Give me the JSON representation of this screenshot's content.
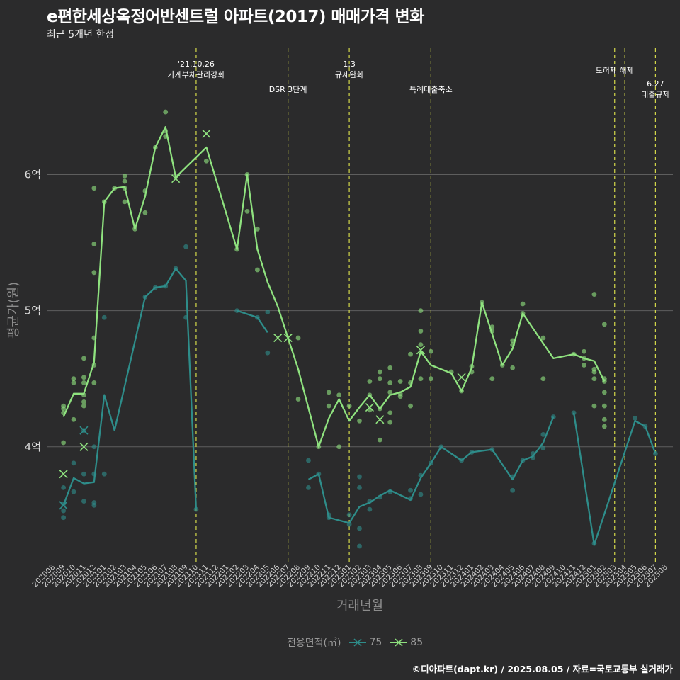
{
  "title": "e편한세상옥정어반센트럴 아파트(2017) 매매가격 변화",
  "subtitle": "최근 5개년 한정",
  "caption": "©디아파트(dapt.kr) / 2025.08.05 / 자료=국토교통부 실거래가",
  "colors": {
    "background": "#2b2b2c",
    "grid": "#5e5e5e",
    "series_75": "#2e8d8a",
    "series_85": "#8fe27f",
    "event_line": "#d4d94a"
  },
  "chart_data": {
    "type": "line",
    "title": "e편한세상옥정어반센트럴 아파트(2017) 매매가격 변화",
    "subtitle": "최근 5개년 한정",
    "xlabel": "거래년월",
    "ylabel": "평균가(원)",
    "legend_title": "전용면적(㎡)",
    "legend_position": "bottom",
    "grid": true,
    "ylim": [
      3.14,
      6.96
    ],
    "yticks": [
      4,
      5,
      6
    ],
    "ytick_labels": [
      "4억",
      "5억",
      "6억"
    ],
    "categories": [
      "202008",
      "202009",
      "202010",
      "202011",
      "202012",
      "202101",
      "202102",
      "202103",
      "202104",
      "202105",
      "202106",
      "202107",
      "202108",
      "202109",
      "202110",
      "202111",
      "202112",
      "202201",
      "202202",
      "202203",
      "202204",
      "202205",
      "202206",
      "202207",
      "202208",
      "202209",
      "202210",
      "202211",
      "202212",
      "202301",
      "202302",
      "202303",
      "202304",
      "202305",
      "202306",
      "202307",
      "202308",
      "202309",
      "202310",
      "202311",
      "202312",
      "202401",
      "202402",
      "202403",
      "202404",
      "202405",
      "202406",
      "202407",
      "202408",
      "202409",
      "202410",
      "202411",
      "202412",
      "202501",
      "202502",
      "202503",
      "202504",
      "202505",
      "202506",
      "202507",
      "202508"
    ],
    "series": [
      {
        "name": "75",
        "color": "#2e8d8a",
        "lines": [
          [
            [
              1,
              3.57
            ],
            [
              2,
              3.77
            ],
            [
              3,
              3.73
            ],
            [
              4,
              3.74
            ],
            [
              5,
              4.38
            ],
            [
              6,
              4.12
            ],
            [
              9,
              5.1
            ],
            [
              10,
              5.17
            ],
            [
              11,
              5.18
            ],
            [
              12,
              5.31
            ],
            [
              13,
              5.22
            ],
            [
              14,
              3.54
            ]
          ],
          [
            [
              18,
              5.0
            ],
            [
              20,
              4.95
            ],
            [
              21,
              4.84
            ]
          ],
          [
            [
              25,
              3.76
            ],
            [
              26,
              3.8
            ],
            [
              27,
              3.48
            ],
            [
              29,
              3.44
            ],
            [
              30,
              3.56
            ],
            [
              31,
              3.59
            ],
            [
              32,
              3.64
            ],
            [
              33,
              3.68
            ],
            [
              35,
              3.61
            ],
            [
              36,
              3.77
            ],
            [
              37,
              3.88
            ],
            [
              38,
              4.0
            ],
            [
              40,
              3.9
            ],
            [
              41,
              3.96
            ],
            [
              43,
              3.98
            ],
            [
              45,
              3.76
            ],
            [
              46,
              3.9
            ],
            [
              47,
              3.93
            ],
            [
              48,
              4.03
            ],
            [
              49,
              4.22
            ]
          ],
          [
            [
              51,
              4.25
            ],
            [
              53,
              3.28
            ],
            [
              57,
              4.19
            ],
            [
              58,
              4.15
            ],
            [
              59,
              3.95
            ]
          ]
        ],
        "points": [
          [
            1,
            3.48
          ],
          [
            1,
            3.53
          ],
          [
            1,
            3.58
          ],
          [
            1,
            3.7
          ],
          [
            2,
            3.67
          ],
          [
            2,
            3.88
          ],
          [
            3,
            3.6
          ],
          [
            3,
            3.8
          ],
          [
            3,
            4.12
          ],
          [
            4,
            3.57
          ],
          [
            4,
            3.59
          ],
          [
            4,
            3.8
          ],
          [
            4,
            4.0
          ],
          [
            5,
            3.8
          ],
          [
            5,
            4.95
          ],
          [
            9,
            5.1
          ],
          [
            10,
            5.17
          ],
          [
            11,
            5.18
          ],
          [
            12,
            5.31
          ],
          [
            13,
            5.47
          ],
          [
            13,
            4.95
          ],
          [
            14,
            3.54
          ],
          [
            18,
            5.0
          ],
          [
            20,
            4.95
          ],
          [
            21,
            4.99
          ],
          [
            21,
            4.69
          ],
          [
            25,
            3.9
          ],
          [
            25,
            3.7
          ],
          [
            26,
            3.8
          ],
          [
            27,
            3.48
          ],
          [
            27,
            3.5
          ],
          [
            29,
            3.43
          ],
          [
            29,
            3.5
          ],
          [
            30,
            3.27
          ],
          [
            30,
            3.4
          ],
          [
            30,
            3.7
          ],
          [
            30,
            3.78
          ],
          [
            31,
            3.54
          ],
          [
            31,
            3.6
          ],
          [
            32,
            3.63
          ],
          [
            33,
            3.67
          ],
          [
            35,
            3.62
          ],
          [
            35,
            3.68
          ],
          [
            36,
            3.65
          ],
          [
            36,
            3.79
          ],
          [
            37,
            3.88
          ],
          [
            38,
            4.0
          ],
          [
            40,
            3.9
          ],
          [
            41,
            3.96
          ],
          [
            43,
            3.98
          ],
          [
            45,
            3.68
          ],
          [
            45,
            3.78
          ],
          [
            46,
            3.9
          ],
          [
            47,
            3.92
          ],
          [
            47,
            3.95
          ],
          [
            48,
            3.99
          ],
          [
            48,
            4.09
          ],
          [
            49,
            4.22
          ],
          [
            51,
            4.25
          ],
          [
            53,
            3.29
          ],
          [
            57,
            4.21
          ],
          [
            58,
            4.15
          ],
          [
            59,
            3.95
          ]
        ],
        "markers_x": [
          [
            1,
            3.57
          ],
          [
            3,
            4.12
          ]
        ]
      },
      {
        "name": "85",
        "color": "#8fe27f",
        "lines": [
          [
            [
              1,
              4.22
            ],
            [
              2,
              4.39
            ],
            [
              3,
              4.39
            ],
            [
              4,
              4.62
            ],
            [
              5,
              5.8
            ],
            [
              6,
              5.9
            ],
            [
              7,
              5.91
            ],
            [
              8,
              5.6
            ],
            [
              9,
              5.84
            ],
            [
              10,
              6.2
            ],
            [
              11,
              6.35
            ],
            [
              12,
              5.98
            ],
            [
              15,
              6.2
            ],
            [
              18,
              5.45
            ],
            [
              19,
              6.0
            ],
            [
              20,
              5.45
            ],
            [
              21,
              5.21
            ],
            [
              22,
              5.03
            ],
            [
              24,
              4.57
            ],
            [
              26,
              4.0
            ],
            [
              27,
              4.21
            ],
            [
              28,
              4.35
            ],
            [
              29,
              4.19
            ],
            [
              30,
              4.29
            ],
            [
              31,
              4.38
            ],
            [
              32,
              4.28
            ],
            [
              33,
              4.38
            ],
            [
              34,
              4.4
            ],
            [
              35,
              4.44
            ],
            [
              36,
              4.7
            ],
            [
              37,
              4.6
            ],
            [
              39,
              4.54
            ],
            [
              40,
              4.41
            ],
            [
              41,
              4.58
            ],
            [
              42,
              5.06
            ],
            [
              44,
              4.6
            ],
            [
              45,
              4.72
            ],
            [
              46,
              4.98
            ],
            [
              49,
              4.65
            ],
            [
              51,
              4.68
            ],
            [
              52,
              4.65
            ],
            [
              53,
              4.63
            ],
            [
              54,
              4.48
            ]
          ]
        ],
        "points": [
          [
            1,
            4.03
          ],
          [
            1,
            4.25
          ],
          [
            1,
            4.28
          ],
          [
            1,
            4.3
          ],
          [
            2,
            4.2
          ],
          [
            2,
            4.47
          ],
          [
            2,
            4.5
          ],
          [
            3,
            4.3
          ],
          [
            3,
            4.33
          ],
          [
            3,
            4.38
          ],
          [
            3,
            4.47
          ],
          [
            3,
            4.51
          ],
          [
            3,
            4.65
          ],
          [
            4,
            4.6
          ],
          [
            4,
            4.8
          ],
          [
            4,
            5.28
          ],
          [
            4,
            5.49
          ],
          [
            4,
            5.9
          ],
          [
            4,
            4.47
          ],
          [
            5,
            5.8
          ],
          [
            6,
            5.9
          ],
          [
            7,
            5.9
          ],
          [
            7,
            5.8
          ],
          [
            7,
            5.95
          ],
          [
            7,
            5.99
          ],
          [
            8,
            5.6
          ],
          [
            9,
            5.72
          ],
          [
            9,
            5.88
          ],
          [
            10,
            6.2
          ],
          [
            11,
            6.28
          ],
          [
            11,
            6.32
          ],
          [
            11,
            6.46
          ],
          [
            15,
            6.1
          ],
          [
            18,
            5.45
          ],
          [
            19,
            6.0
          ],
          [
            19,
            5.73
          ],
          [
            20,
            5.3
          ],
          [
            20,
            5.6
          ],
          [
            24,
            4.8
          ],
          [
            24,
            4.35
          ],
          [
            26,
            4.0
          ],
          [
            27,
            4.3
          ],
          [
            27,
            4.4
          ],
          [
            28,
            4.0
          ],
          [
            28,
            4.38
          ],
          [
            29,
            4.3
          ],
          [
            30,
            4.19
          ],
          [
            31,
            4.38
          ],
          [
            31,
            4.48
          ],
          [
            31,
            4.27
          ],
          [
            32,
            4.05
          ],
          [
            32,
            4.28
          ],
          [
            32,
            4.55
          ],
          [
            32,
            4.5
          ],
          [
            33,
            4.18
          ],
          [
            33,
            4.25
          ],
          [
            33,
            4.4
          ],
          [
            33,
            4.47
          ],
          [
            33,
            4.58
          ],
          [
            34,
            4.37
          ],
          [
            34,
            4.39
          ],
          [
            34,
            4.48
          ],
          [
            35,
            4.3
          ],
          [
            35,
            4.47
          ],
          [
            35,
            4.68
          ],
          [
            36,
            4.75
          ],
          [
            36,
            4.85
          ],
          [
            36,
            5.0
          ],
          [
            36,
            4.5
          ],
          [
            37,
            4.5
          ],
          [
            37,
            4.7
          ],
          [
            39,
            4.55
          ],
          [
            40,
            4.41
          ],
          [
            41,
            4.55
          ],
          [
            41,
            4.59
          ],
          [
            42,
            5.06
          ],
          [
            43,
            4.5
          ],
          [
            43,
            4.85
          ],
          [
            43,
            4.88
          ],
          [
            44,
            4.6
          ],
          [
            45,
            4.58
          ],
          [
            45,
            4.75
          ],
          [
            45,
            4.78
          ],
          [
            46,
            4.98
          ],
          [
            46,
            5.05
          ],
          [
            48,
            4.8
          ],
          [
            48,
            4.5
          ],
          [
            51,
            4.68
          ],
          [
            52,
            4.6
          ],
          [
            52,
            4.65
          ],
          [
            52,
            4.7
          ],
          [
            53,
            4.55
          ],
          [
            53,
            4.57
          ],
          [
            53,
            4.5
          ],
          [
            53,
            4.3
          ],
          [
            53,
            5.12
          ],
          [
            54,
            4.48
          ],
          [
            54,
            4.5
          ],
          [
            54,
            4.4
          ],
          [
            54,
            4.9
          ],
          [
            54,
            4.3
          ],
          [
            54,
            4.2
          ],
          [
            54,
            4.15
          ]
        ],
        "markers_x": [
          [
            1,
            3.8
          ],
          [
            3,
            4.0
          ],
          [
            12,
            5.97
          ],
          [
            15,
            6.3
          ],
          [
            22,
            4.8
          ],
          [
            23,
            4.8
          ],
          [
            31,
            4.29
          ],
          [
            32,
            4.2
          ],
          [
            36,
            4.71
          ],
          [
            40,
            4.51
          ]
        ]
      }
    ],
    "event_lines": [
      {
        "x": 14,
        "label": [
          "'21.10.26",
          "가계부채관리강화"
        ],
        "level": 0
      },
      {
        "x": 23,
        "label": [
          "DSR 3단계"
        ],
        "level": 1
      },
      {
        "x": 29,
        "label": [
          "1.3",
          "규제완화"
        ],
        "level": 0
      },
      {
        "x": 37,
        "label": [
          "특례대출축소"
        ],
        "level": 1
      },
      {
        "x": 55,
        "label": [
          "토허제 해제"
        ],
        "level": 0
      },
      {
        "x": 56,
        "label": [],
        "level": 0
      },
      {
        "x": 59,
        "label": [
          "6.27",
          "대출규제"
        ],
        "level": 2
      }
    ]
  }
}
